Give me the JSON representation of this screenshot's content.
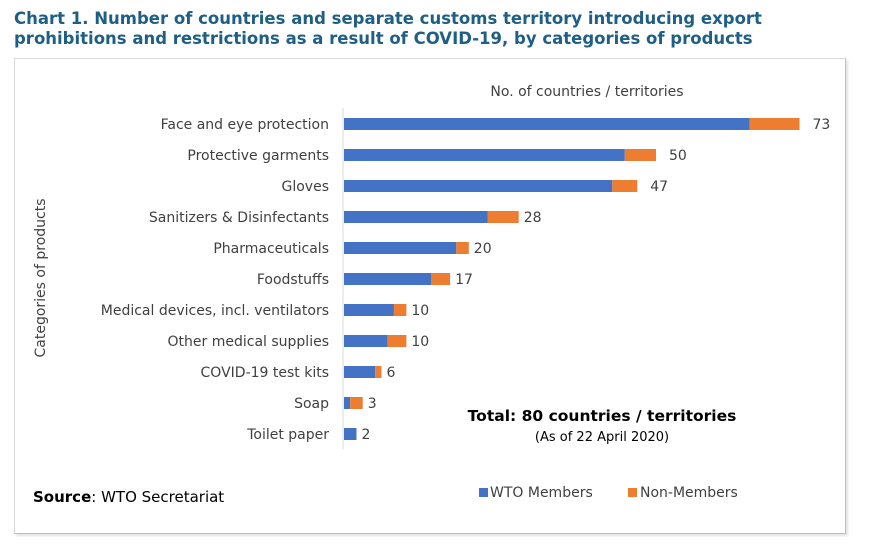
{
  "title_line1": "Chart 1. Number of countries and separate customs territory introducing export",
  "title_line2": "prohibitions and restrictions as a result of COVID-19, by categories of products",
  "source_label": "Source",
  "source_text": ": WTO Secretariat",
  "total_text": "Total: 80 countries / territories",
  "total_date": "(As of 22 April 2020)",
  "colors": {
    "wto": "#4472c4",
    "non_wto": "#ed7d31",
    "title": "#1f5f86"
  },
  "chart_data": {
    "type": "bar",
    "orientation": "horizontal",
    "stacked": true,
    "title": "",
    "xlabel": "No. of countries / territories",
    "ylabel": "Categories of products",
    "xlim": [
      0,
      80
    ],
    "grid": false,
    "legend_position": "bottom",
    "categories": [
      "Face and eye protection",
      "Protective garments",
      "Gloves",
      "Sanitizers & Disinfectants",
      "Pharmaceuticals",
      "Foodstuffs",
      "Medical devices, incl. ventilators",
      "Other medical supplies",
      "COVID-19 test kits",
      "Soap",
      "Toilet paper"
    ],
    "series": [
      {
        "name": "WTO Members",
        "values": [
          65,
          45,
          43,
          23,
          18,
          14,
          8,
          7,
          5,
          1,
          2
        ]
      },
      {
        "name": "Non-Members",
        "values": [
          8,
          5,
          4,
          5,
          2,
          3,
          2,
          3,
          1,
          2,
          0
        ]
      }
    ],
    "totals": [
      73,
      50,
      47,
      28,
      20,
      17,
      10,
      10,
      6,
      3,
      2
    ]
  }
}
